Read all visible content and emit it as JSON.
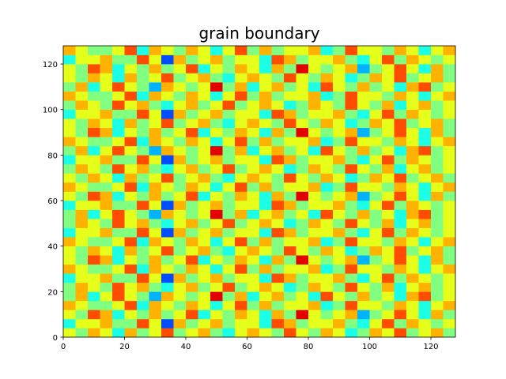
{
  "chart_data": {
    "type": "heatmap",
    "title": "grain boundary",
    "colormap": "jet",
    "xlim": [
      0,
      128
    ],
    "ylim": [
      0,
      128
    ],
    "zlim": [
      0,
      10
    ],
    "xticks": [
      0,
      20,
      40,
      60,
      80,
      100,
      120
    ],
    "yticks": [
      0,
      20,
      40,
      60,
      80,
      100,
      120
    ],
    "z": [
      [
        6,
        5,
        7,
        6,
        4,
        7,
        5,
        6,
        8,
        5,
        6,
        7,
        5,
        4,
        6,
        7,
        6,
        5,
        8,
        6,
        5,
        7,
        6,
        4,
        5,
        7,
        6,
        8,
        5,
        6,
        7,
        5
      ],
      [
        4,
        6,
        6,
        7,
        5,
        5,
        8,
        6,
        2,
        7,
        5,
        6,
        7,
        5,
        6,
        6,
        4,
        8,
        7,
        5,
        6,
        6,
        7,
        5,
        4,
        6,
        8,
        5,
        7,
        6,
        5,
        6
      ],
      [
        6,
        5,
        8,
        7,
        4,
        6,
        5,
        7,
        5,
        6,
        8,
        4,
        6,
        5,
        7,
        6,
        4,
        7,
        5,
        9,
        6,
        5,
        6,
        7,
        3,
        5,
        6,
        8,
        6,
        4,
        7,
        5
      ],
      [
        7,
        6,
        5,
        5,
        6,
        8,
        4,
        7,
        6,
        5,
        7,
        6,
        4,
        6,
        8,
        5,
        7,
        5,
        6,
        6,
        7,
        4,
        5,
        8,
        6,
        6,
        5,
        7,
        6,
        4,
        6,
        7
      ],
      [
        5,
        7,
        4,
        6,
        8,
        6,
        5,
        3,
        7,
        6,
        5,
        6,
        9,
        5,
        7,
        4,
        6,
        7,
        5,
        6,
        4,
        8,
        6,
        5,
        7,
        5,
        6,
        4,
        7,
        8,
        5,
        6
      ],
      [
        5,
        7,
        6,
        5,
        8,
        6,
        7,
        5,
        4,
        6,
        7,
        5,
        6,
        8,
        5,
        6,
        7,
        6,
        4,
        5,
        7,
        6,
        5,
        8,
        6,
        5,
        7,
        4,
        6,
        7,
        5,
        6
      ],
      [
        4,
        6,
        6,
        7,
        5,
        5,
        8,
        6,
        2,
        7,
        5,
        6,
        7,
        5,
        6,
        6,
        4,
        8,
        7,
        5,
        6,
        6,
        7,
        5,
        4,
        6,
        8,
        5,
        7,
        6,
        5,
        6
      ],
      [
        7,
        6,
        5,
        5,
        6,
        8,
        4,
        7,
        6,
        5,
        7,
        6,
        4,
        6,
        8,
        5,
        7,
        5,
        6,
        6,
        7,
        4,
        5,
        8,
        6,
        6,
        5,
        7,
        6,
        4,
        6,
        7
      ],
      [
        6,
        5,
        8,
        7,
        4,
        6,
        5,
        7,
        5,
        6,
        8,
        4,
        6,
        5,
        7,
        6,
        4,
        7,
        5,
        9,
        6,
        5,
        6,
        7,
        3,
        5,
        6,
        8,
        6,
        4,
        7,
        5
      ],
      [
        6,
        5,
        7,
        6,
        4,
        7,
        5,
        6,
        8,
        5,
        6,
        7,
        5,
        4,
        6,
        7,
        6,
        5,
        8,
        6,
        5,
        7,
        6,
        4,
        5,
        7,
        6,
        8,
        5,
        6,
        7,
        5
      ],
      [
        7,
        6,
        5,
        5,
        6,
        8,
        4,
        7,
        6,
        5,
        7,
        6,
        4,
        6,
        8,
        5,
        7,
        5,
        6,
        6,
        7,
        4,
        5,
        8,
        6,
        6,
        5,
        7,
        6,
        4,
        6,
        7
      ],
      [
        4,
        6,
        6,
        7,
        5,
        5,
        8,
        6,
        2,
        7,
        5,
        6,
        7,
        5,
        6,
        6,
        4,
        8,
        7,
        5,
        6,
        6,
        7,
        5,
        4,
        6,
        8,
        5,
        7,
        6,
        5,
        6
      ],
      [
        5,
        7,
        6,
        5,
        8,
        6,
        7,
        5,
        4,
        6,
        7,
        5,
        6,
        8,
        5,
        6,
        7,
        6,
        4,
        5,
        7,
        6,
        5,
        8,
        6,
        5,
        7,
        4,
        6,
        7,
        5,
        6
      ],
      [
        5,
        7,
        4,
        6,
        8,
        6,
        5,
        3,
        7,
        6,
        5,
        6,
        9,
        5,
        7,
        4,
        6,
        7,
        5,
        6,
        4,
        8,
        6,
        5,
        7,
        5,
        6,
        4,
        7,
        8,
        5,
        6
      ],
      [
        4,
        6,
        6,
        7,
        5,
        5,
        8,
        6,
        2,
        7,
        5,
        6,
        7,
        5,
        6,
        6,
        4,
        8,
        7,
        5,
        6,
        6,
        7,
        5,
        4,
        6,
        8,
        5,
        7,
        6,
        5,
        6
      ],
      [
        6,
        5,
        8,
        7,
        4,
        6,
        5,
        7,
        5,
        6,
        8,
        4,
        6,
        5,
        7,
        6,
        4,
        7,
        5,
        9,
        6,
        5,
        6,
        7,
        3,
        5,
        6,
        8,
        6,
        4,
        7,
        5
      ],
      [
        7,
        6,
        5,
        5,
        6,
        8,
        4,
        7,
        6,
        5,
        7,
        6,
        4,
        6,
        8,
        5,
        7,
        5,
        6,
        6,
        7,
        4,
        5,
        8,
        6,
        6,
        5,
        7,
        6,
        4,
        6,
        7
      ],
      [
        6,
        5,
        7,
        6,
        4,
        7,
        5,
        6,
        8,
        5,
        6,
        7,
        5,
        4,
        6,
        7,
        6,
        5,
        8,
        6,
        5,
        7,
        6,
        4,
        5,
        7,
        6,
        8,
        5,
        6,
        7,
        5
      ],
      [
        5,
        7,
        6,
        5,
        8,
        6,
        7,
        5,
        4,
        6,
        7,
        5,
        6,
        8,
        5,
        6,
        7,
        6,
        4,
        5,
        7,
        6,
        5,
        8,
        6,
        5,
        7,
        4,
        6,
        7,
        5,
        6
      ],
      [
        4,
        6,
        6,
        7,
        5,
        5,
        8,
        6,
        2,
        7,
        5,
        6,
        7,
        5,
        6,
        6,
        4,
        8,
        7,
        5,
        6,
        6,
        7,
        5,
        4,
        6,
        8,
        5,
        7,
        6,
        5,
        6
      ],
      [
        5,
        7,
        4,
        6,
        8,
        6,
        5,
        3,
        7,
        6,
        5,
        6,
        9,
        5,
        7,
        4,
        6,
        7,
        5,
        6,
        4,
        8,
        6,
        5,
        7,
        5,
        6,
        4,
        7,
        8,
        5,
        6
      ],
      [
        7,
        6,
        5,
        5,
        6,
        8,
        4,
        7,
        6,
        5,
        7,
        6,
        4,
        6,
        8,
        5,
        7,
        5,
        6,
        6,
        7,
        4,
        5,
        8,
        6,
        6,
        5,
        7,
        6,
        4,
        6,
        7
      ],
      [
        6,
        5,
        8,
        7,
        4,
        6,
        5,
        7,
        5,
        6,
        8,
        4,
        6,
        5,
        7,
        6,
        4,
        7,
        5,
        9,
        6,
        5,
        6,
        7,
        3,
        5,
        6,
        8,
        6,
        4,
        7,
        5
      ],
      [
        6,
        5,
        7,
        6,
        4,
        7,
        5,
        6,
        8,
        5,
        6,
        7,
        5,
        4,
        6,
        7,
        6,
        5,
        8,
        6,
        5,
        7,
        6,
        4,
        5,
        7,
        6,
        8,
        5,
        6,
        7,
        5
      ],
      [
        4,
        6,
        6,
        7,
        5,
        5,
        8,
        6,
        2,
        7,
        5,
        6,
        7,
        5,
        6,
        6,
        4,
        8,
        7,
        5,
        6,
        6,
        7,
        5,
        4,
        6,
        8,
        5,
        7,
        6,
        5,
        6
      ],
      [
        5,
        7,
        6,
        5,
        8,
        6,
        7,
        5,
        4,
        6,
        7,
        5,
        6,
        8,
        5,
        6,
        7,
        6,
        4,
        5,
        7,
        6,
        5,
        8,
        6,
        5,
        7,
        4,
        6,
        7,
        5,
        6
      ],
      [
        7,
        6,
        5,
        5,
        6,
        8,
        4,
        7,
        6,
        5,
        7,
        6,
        4,
        6,
        8,
        5,
        7,
        5,
        6,
        6,
        7,
        4,
        5,
        8,
        6,
        6,
        5,
        7,
        6,
        4,
        6,
        7
      ],
      [
        5,
        7,
        4,
        6,
        8,
        6,
        5,
        3,
        7,
        6,
        5,
        6,
        9,
        5,
        7,
        4,
        6,
        7,
        5,
        6,
        4,
        8,
        6,
        5,
        7,
        5,
        6,
        4,
        7,
        8,
        5,
        6
      ],
      [
        6,
        5,
        7,
        6,
        4,
        7,
        5,
        6,
        8,
        5,
        6,
        7,
        5,
        4,
        6,
        7,
        6,
        5,
        8,
        6,
        5,
        7,
        6,
        4,
        5,
        7,
        6,
        8,
        5,
        6,
        7,
        5
      ],
      [
        6,
        5,
        8,
        7,
        4,
        6,
        5,
        7,
        5,
        6,
        8,
        4,
        6,
        5,
        7,
        6,
        4,
        7,
        5,
        9,
        6,
        5,
        6,
        7,
        3,
        5,
        6,
        8,
        6,
        4,
        7,
        5
      ],
      [
        4,
        6,
        6,
        7,
        5,
        5,
        8,
        6,
        2,
        7,
        5,
        6,
        7,
        5,
        6,
        6,
        4,
        8,
        7,
        5,
        6,
        6,
        7,
        5,
        4,
        6,
        8,
        5,
        7,
        6,
        5,
        6
      ],
      [
        7,
        6,
        5,
        5,
        6,
        8,
        4,
        7,
        6,
        5,
        7,
        6,
        4,
        6,
        8,
        5,
        7,
        5,
        6,
        6,
        7,
        4,
        5,
        8,
        6,
        6,
        5,
        7,
        6,
        4,
        6,
        7
      ]
    ]
  }
}
